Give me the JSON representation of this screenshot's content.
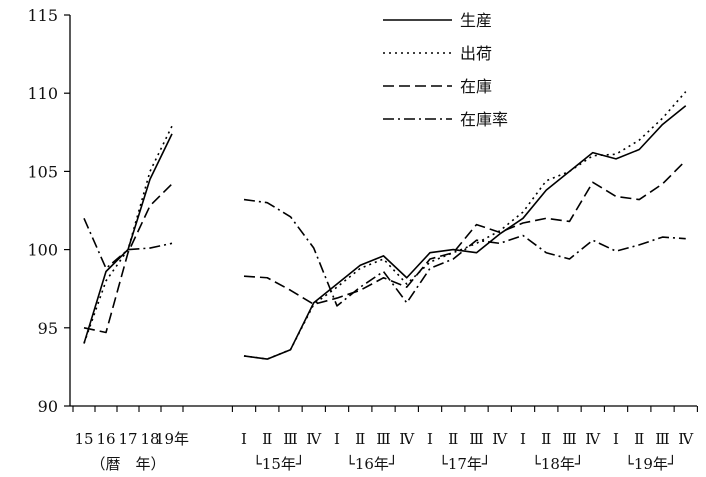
{
  "chart_data": {
    "type": "line",
    "title": "",
    "xlabel": "",
    "ylabel": "",
    "ylim": [
      90,
      115
    ],
    "yticks": [
      90,
      95,
      100,
      105,
      110,
      115
    ],
    "grid": false,
    "legend_position": "top-right",
    "annual": {
      "categories": [
        "15",
        "16",
        "17",
        "18",
        "19年"
      ],
      "caption": "（暦　年）"
    },
    "quarterly": {
      "categories": [
        "Ⅰ",
        "Ⅱ",
        "Ⅲ",
        "Ⅳ",
        "Ⅰ",
        "Ⅱ",
        "Ⅲ",
        "Ⅳ",
        "Ⅰ",
        "Ⅱ",
        "Ⅲ",
        "Ⅳ",
        "Ⅰ",
        "Ⅱ",
        "Ⅲ",
        "Ⅳ",
        "Ⅰ",
        "Ⅱ",
        "Ⅲ",
        "Ⅳ"
      ],
      "year_labels": [
        "└15年┘",
        "└16年┘",
        "└17年┘",
        "└18年┘",
        "└19年┘"
      ]
    },
    "series": [
      {
        "name": "生産",
        "dash": "solid",
        "annual": [
          94.0,
          98.6,
          100.0,
          104.5,
          107.4
        ],
        "quarterly": [
          93.2,
          93.0,
          93.6,
          96.6,
          97.8,
          99.0,
          99.6,
          98.2,
          99.8,
          100.0,
          99.8,
          101.0,
          102.0,
          103.8,
          105.0,
          106.2,
          105.8,
          106.4,
          108.0,
          109.2
        ]
      },
      {
        "name": "出荷",
        "dash": "dot",
        "annual": [
          94.0,
          98.0,
          100.0,
          105.0,
          107.9
        ],
        "quarterly": [
          93.2,
          93.0,
          93.6,
          96.5,
          97.6,
          98.8,
          99.4,
          97.8,
          99.2,
          99.8,
          100.4,
          101.2,
          102.4,
          104.4,
          105.0,
          106.0,
          106.1,
          107.0,
          108.4,
          110.1
        ]
      },
      {
        "name": "在庫",
        "dash": "dash",
        "annual": [
          95.0,
          94.7,
          99.8,
          102.8,
          104.2
        ],
        "quarterly": [
          98.3,
          98.2,
          97.4,
          96.5,
          96.9,
          97.4,
          98.2,
          97.6,
          99.4,
          99.8,
          101.6,
          101.1,
          101.7,
          102.0,
          101.8,
          104.3,
          103.4,
          103.2,
          104.2,
          105.7
        ]
      },
      {
        "name": "在庫率",
        "dash": "dashdot",
        "annual": [
          102.0,
          98.8,
          100.0,
          100.1,
          100.4
        ],
        "quarterly": [
          103.2,
          103.0,
          102.1,
          100.1,
          96.4,
          97.6,
          98.6,
          96.6,
          98.8,
          99.4,
          100.6,
          100.4,
          100.9,
          99.8,
          99.4,
          100.6,
          99.9,
          100.3,
          100.8,
          100.7
        ]
      }
    ]
  }
}
